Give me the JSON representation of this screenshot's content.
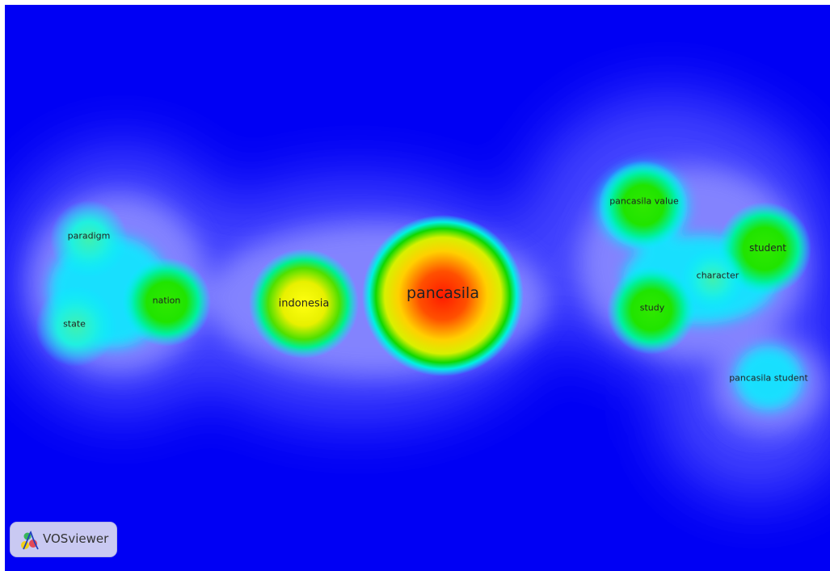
{
  "colors": {
    "background": "#0000f4",
    "low": "#5050ff",
    "cyan": "#00f0ff",
    "green": "#10e000",
    "yellow": "#f0f000",
    "red": "#ff2000"
  },
  "brand": {
    "name": "VOSviewer",
    "icon": "vosviewer-logo-icon"
  },
  "terms": [
    {
      "id": "pancasila",
      "label": "pancasila",
      "density": 1.0
    },
    {
      "id": "indonesia",
      "label": "indonesia",
      "density": 0.62
    },
    {
      "id": "nation",
      "label": "nation",
      "density": 0.45
    },
    {
      "id": "paradigm",
      "label": "paradigm",
      "density": 0.4
    },
    {
      "id": "state",
      "label": "state",
      "density": 0.4
    },
    {
      "id": "pancasila-value",
      "label": "pancasila value",
      "density": 0.5
    },
    {
      "id": "student",
      "label": "student",
      "density": 0.52
    },
    {
      "id": "character",
      "label": "character",
      "density": 0.35
    },
    {
      "id": "study",
      "label": "study",
      "density": 0.52
    },
    {
      "id": "pancasila-student",
      "label": "pancasila student",
      "density": 0.3
    }
  ]
}
